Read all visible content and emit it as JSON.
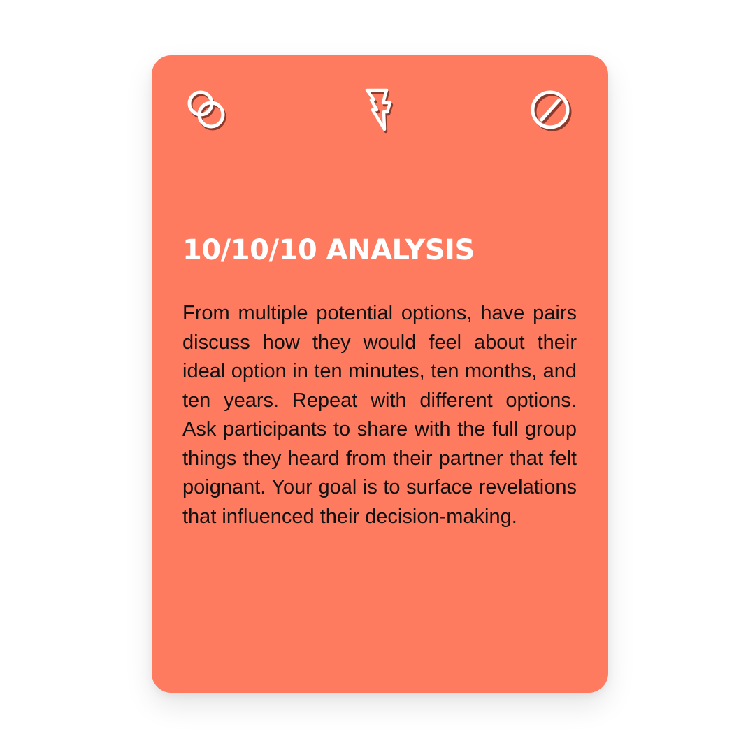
{
  "card": {
    "background_color": "#FF7B60",
    "icon_color": "#ffffff",
    "icon_shadow_color": "#8a3a2c",
    "icons": {
      "left": "two-overlapping-circles-icon",
      "middle": "lightning-bolt-icon",
      "right": "prohibited-circle-icon"
    },
    "title": "10/10/10 ANALYSIS",
    "body": "From multiple potential options, have pairs discuss how they would feel about their ideal option in ten minutes, ten months, and ten years. Repeat with different options. Ask participants to share with the full group things they heard from their partner that felt poignant. Your goal is to surface revelations that influ­enced their decision-making."
  }
}
